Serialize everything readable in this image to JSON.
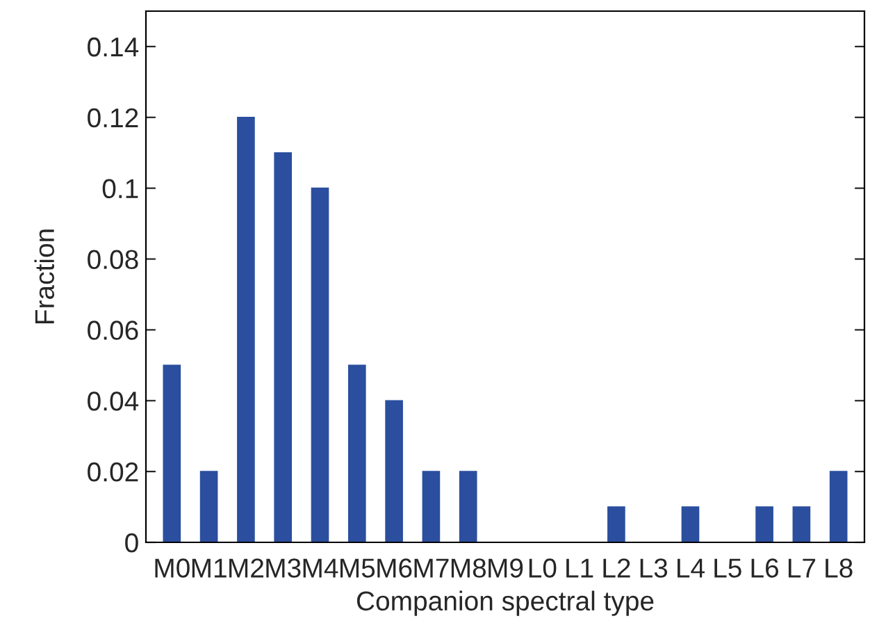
{
  "chart_data": {
    "type": "bar",
    "xlabel": "Companion spectral type",
    "ylabel": "Fraction",
    "categories": [
      "M0",
      "M1",
      "M2",
      "M3",
      "M4",
      "M5",
      "M6",
      "M7",
      "M8",
      "M9",
      "L0",
      "L1",
      "L2",
      "L3",
      "L4",
      "L5",
      "L6",
      "L7",
      "L8"
    ],
    "values": [
      0.05,
      0.02,
      0.12,
      0.11,
      0.1,
      0.05,
      0.04,
      0.02,
      0.02,
      0,
      0,
      0,
      0.01,
      0,
      0.01,
      0,
      0.01,
      0.01,
      0.02
    ],
    "color": "#2b4f9e",
    "ylim": [
      0,
      0.15
    ],
    "yticks": [
      0,
      0.02,
      0.04,
      0.06,
      0.08,
      0.1,
      0.12,
      0.14
    ],
    "grid": false,
    "legend": false
  }
}
